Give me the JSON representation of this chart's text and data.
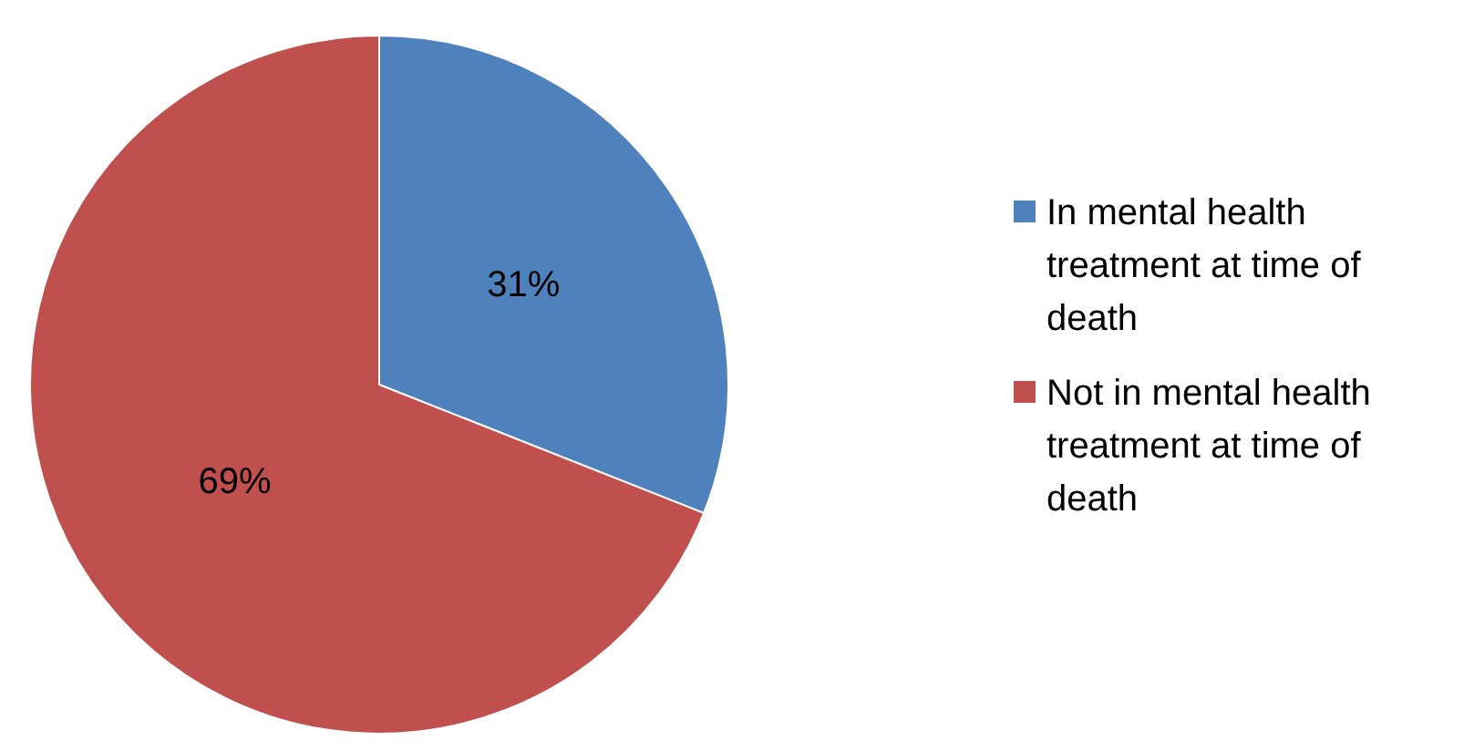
{
  "chart_data": {
    "type": "pie",
    "categories": [
      "In mental health treatment at time of death",
      "Not in mental health treatment at time of death"
    ],
    "values": [
      31,
      69
    ],
    "colors": [
      "#4f81bd",
      "#c0504d"
    ],
    "value_labels": [
      "31%",
      "69%"
    ],
    "legend": "right"
  }
}
